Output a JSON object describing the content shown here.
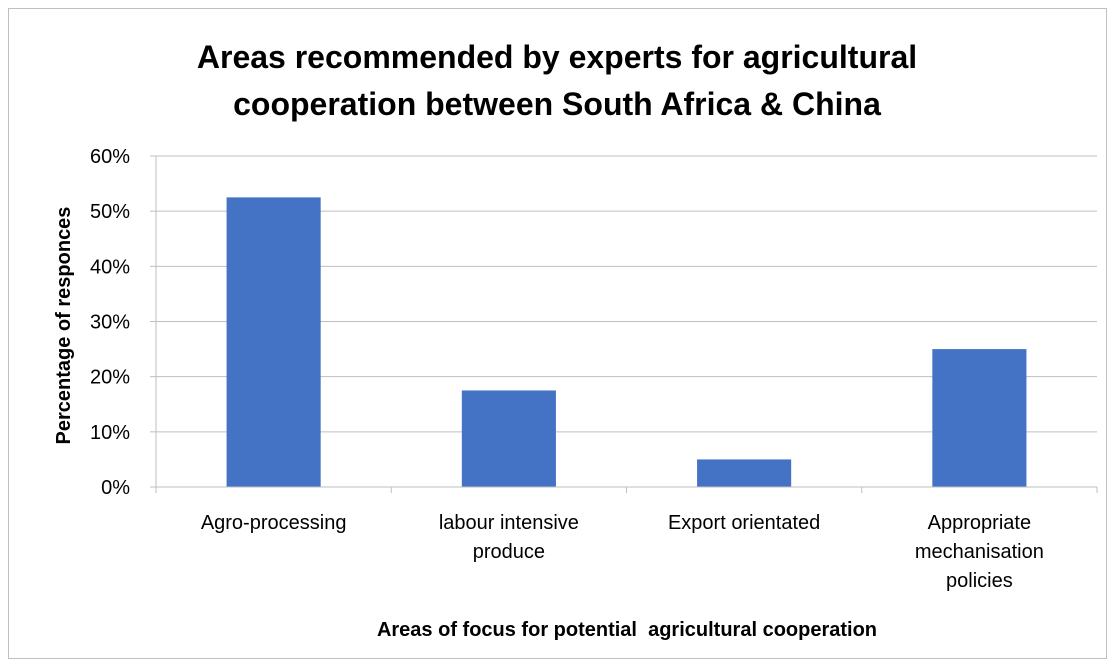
{
  "chart_data": {
    "type": "bar",
    "title": "Areas recommended by experts for agricultural cooperation between South Africa & China",
    "title_lines": [
      "Areas recommended by experts for agricultural",
      "cooperation between South Africa & China"
    ],
    "xlabel": "Areas of focus for potential  agricultural cooperation",
    "ylabel": "Percentage of responces",
    "categories": [
      [
        "Agro-processing"
      ],
      [
        "labour intensive",
        "produce"
      ],
      [
        "Export orientated"
      ],
      [
        "Appropriate",
        "mechanisation",
        "policies"
      ]
    ],
    "values": [
      0.525,
      0.175,
      0.05,
      0.25
    ],
    "ylim": [
      0,
      0.6
    ],
    "yticks": [
      "0%",
      "10%",
      "20%",
      "30%",
      "40%",
      "50%",
      "60%"
    ],
    "grid": true,
    "legend": "none",
    "bar_color": "#4472c4",
    "grid_color": "#bfbfbf"
  }
}
